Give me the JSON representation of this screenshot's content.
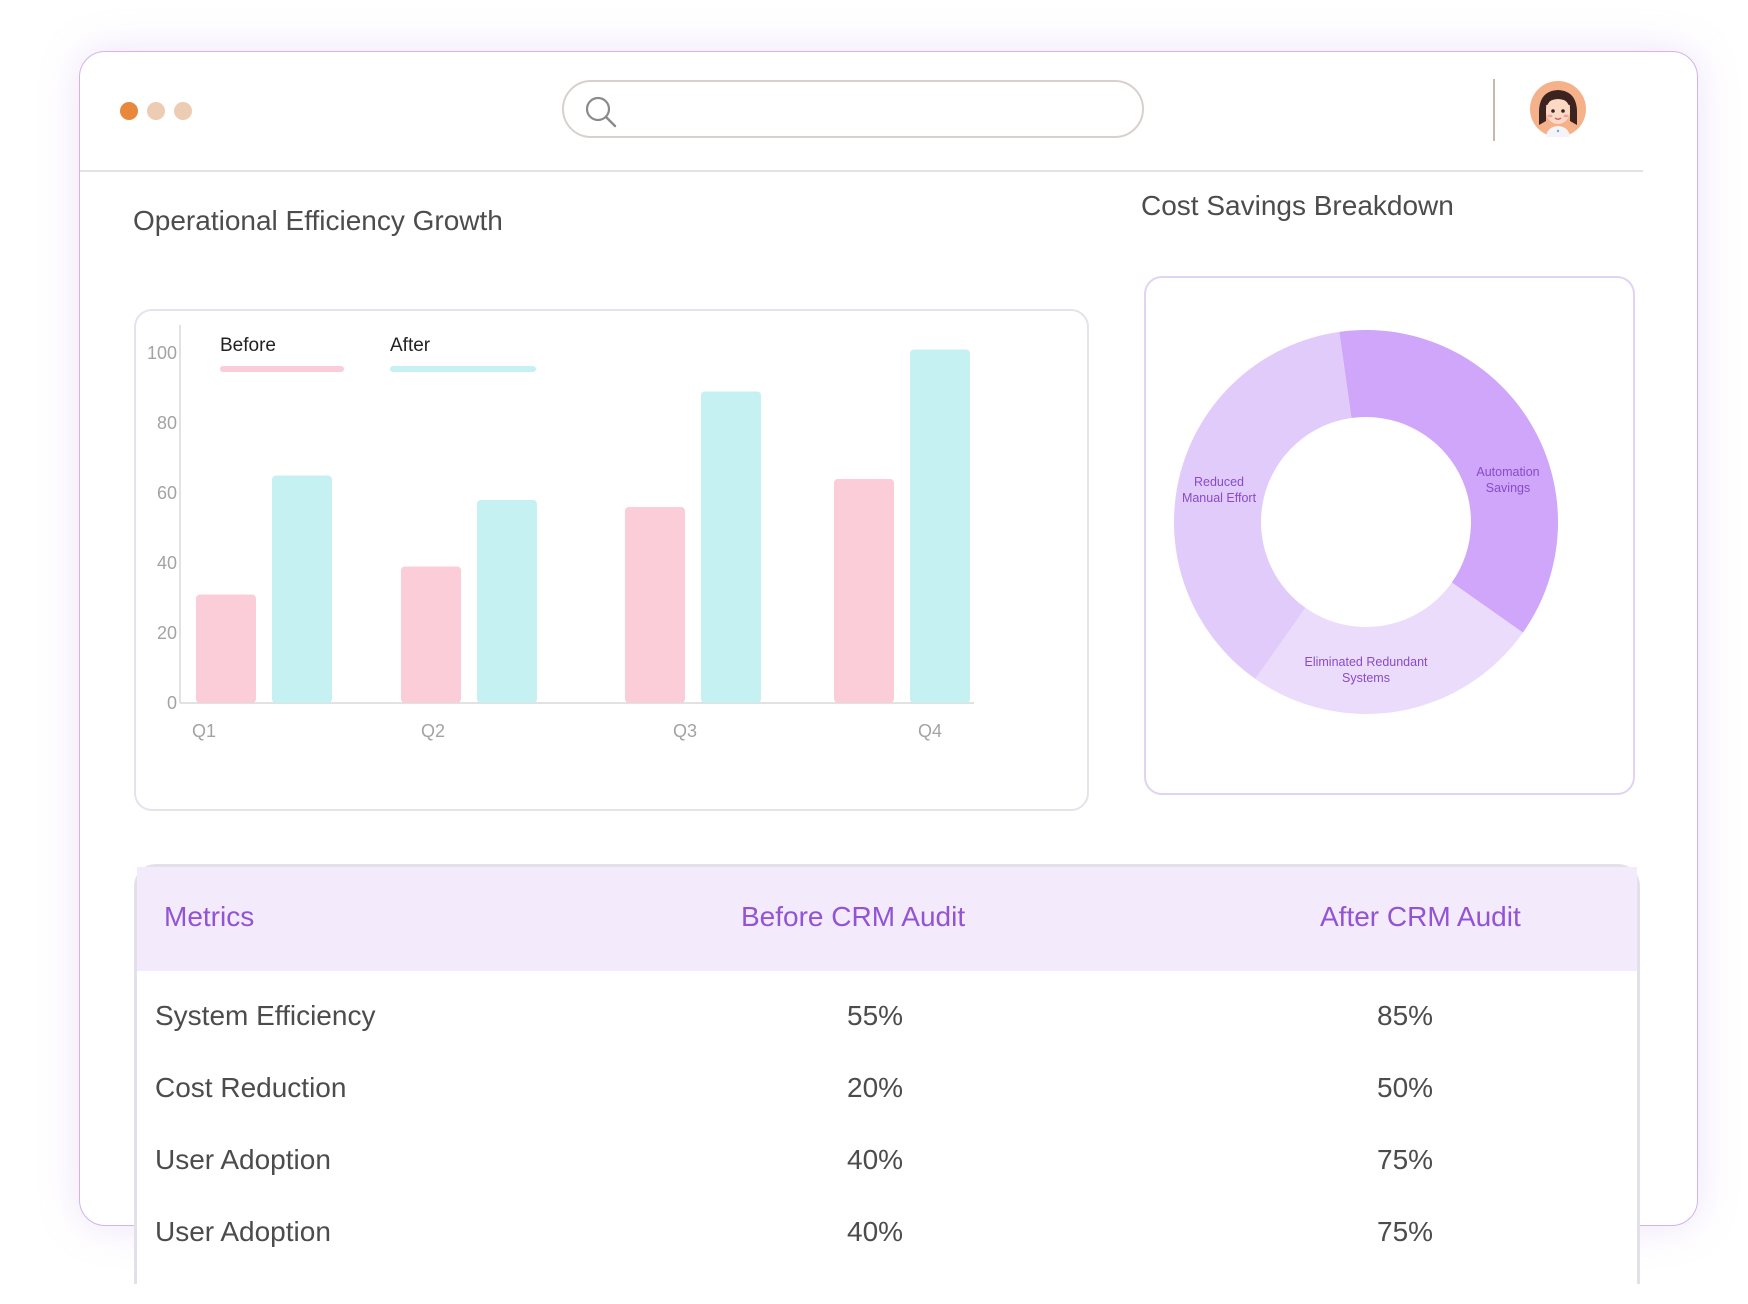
{
  "window": {
    "dots": [
      "#e8883a",
      "#ecccb3",
      "#ecccb3"
    ]
  },
  "search": {
    "placeholder": "",
    "value": ""
  },
  "efficiency_chart": {
    "title": "Operational Efficiency Growth"
  },
  "cost_chart": {
    "title": "Cost Savings Breakdown"
  },
  "chart_data": [
    {
      "type": "bar",
      "title": "Operational Efficiency Growth",
      "categories": [
        "Q1",
        "Q2",
        "Q3",
        "Q4"
      ],
      "series": [
        {
          "name": "Before",
          "values": [
            31,
            39,
            56,
            64
          ],
          "color": "#fbcdd9"
        },
        {
          "name": "After",
          "values": [
            65,
            58,
            89,
            101
          ],
          "color": "#c6f1f2"
        }
      ],
      "y_ticks": [
        0,
        20,
        40,
        60,
        80,
        100
      ],
      "ylim": [
        0,
        100
      ],
      "legend_position": "top-left",
      "grid": false
    },
    {
      "type": "pie",
      "donut": true,
      "title": "Cost Savings Breakdown",
      "slices": [
        {
          "label": "Automation Savings",
          "value": 37,
          "color": "#cfa6fa"
        },
        {
          "label": "Eliminated Redundant Systems",
          "value": 25,
          "color": "#ebdcfc"
        },
        {
          "label": "Reduced Manual Effort",
          "value": 38,
          "color": "#e1cbfa"
        }
      ]
    }
  ],
  "table": {
    "headers": [
      "Metrics",
      "Before CRM Audit",
      "After CRM Audit"
    ],
    "rows": [
      [
        "System Efficiency",
        "55%",
        "85%"
      ],
      [
        "Cost Reduction",
        "20%",
        "50%"
      ],
      [
        "User Adoption",
        "40%",
        "75%"
      ],
      [
        "User Adoption",
        "40%",
        "75%"
      ]
    ]
  }
}
